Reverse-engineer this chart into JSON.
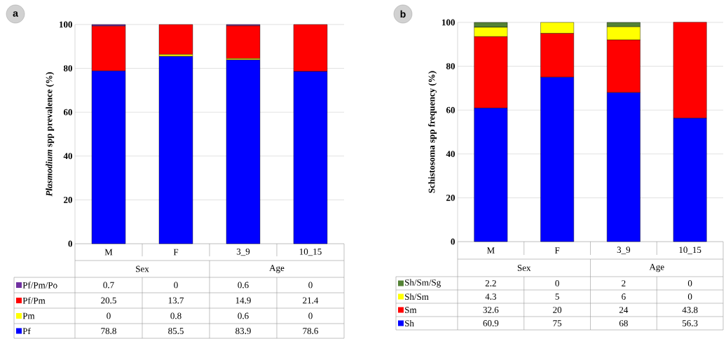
{
  "chart_data": [
    {
      "type": "bar",
      "stacked": true,
      "title": "a",
      "ylabel": "*Plasmodium* spp prevalence (%)",
      "categories": [
        "M",
        "F",
        "3_9",
        "10_15"
      ],
      "annotations": [
        "Sex",
        "Age"
      ],
      "ylim": [
        0,
        100
      ],
      "yticks": [
        0,
        20,
        40,
        60,
        80,
        100
      ],
      "grid": "y",
      "legend": "bottom",
      "data_labels": true,
      "series": [
        {
          "name": "Pf",
          "color": "#0000ff",
          "values": [
            78.8,
            85.5,
            83.9,
            78.6
          ]
        },
        {
          "name": "Pm",
          "color": "#ffff00",
          "values": [
            0,
            0.8,
            0.6,
            0
          ]
        },
        {
          "name": "Pf/Pm",
          "color": "#ff0000",
          "values": [
            20.5,
            13.7,
            14.9,
            21.4
          ]
        },
        {
          "name": "Pf/Pm/Po",
          "color": "#7030a0",
          "values": [
            0.7,
            0,
            0.6,
            0
          ]
        }
      ]
    },
    {
      "type": "bar",
      "stacked": true,
      "title": "b",
      "ylabel": "Schistosoma spp frequency (%)",
      "categories": [
        "M",
        "F",
        "3_9",
        "10_15"
      ],
      "annotations": [
        "Sex",
        "Age"
      ],
      "ylim": [
        0,
        100
      ],
      "yticks": [
        0,
        20,
        40,
        60,
        80,
        100
      ],
      "grid": "y",
      "legend": "bottom",
      "data_labels": true,
      "series": [
        {
          "name": "Sh",
          "color": "#0000ff",
          "values": [
            60.9,
            75,
            68,
            56.3
          ]
        },
        {
          "name": "Sm",
          "color": "#ff0000",
          "values": [
            32.6,
            20,
            24,
            43.8
          ]
        },
        {
          "name": "Sh/Sm",
          "color": "#ffff00",
          "values": [
            4.3,
            5,
            6,
            0
          ]
        },
        {
          "name": "Sh/Sm/Sg",
          "color": "#548235",
          "values": [
            2.2,
            0,
            2,
            0
          ]
        }
      ]
    }
  ]
}
